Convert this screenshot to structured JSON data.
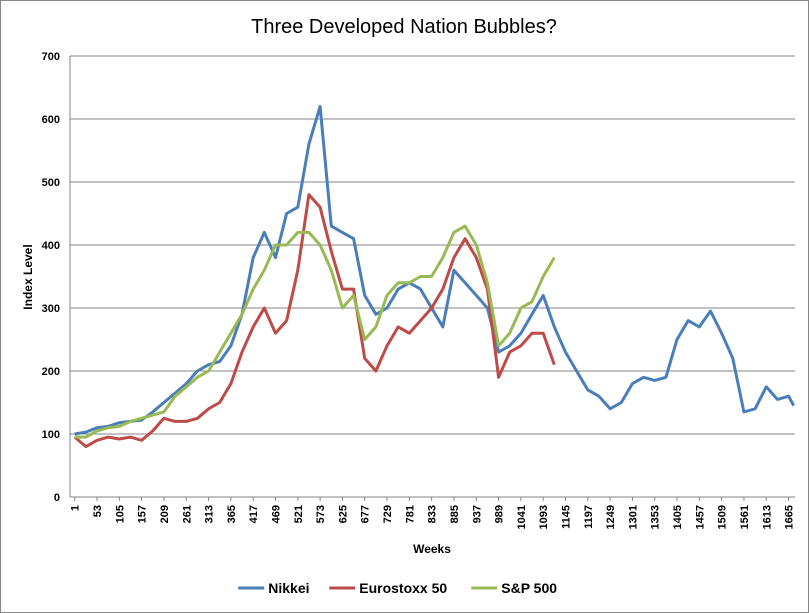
{
  "chart_data": {
    "type": "line",
    "title": "Three Developed Nation Bubbles?",
    "xlabel": "Weeks",
    "ylabel": "Index Level",
    "x": [
      1,
      27,
      53,
      79,
      105,
      131,
      157,
      183,
      209,
      235,
      261,
      287,
      313,
      339,
      365,
      391,
      417,
      443,
      469,
      495,
      521,
      547,
      573,
      599,
      625,
      651,
      677,
      703,
      729,
      755,
      781,
      807,
      833,
      859,
      885,
      911,
      937,
      963,
      989,
      1015,
      1041,
      1067,
      1093,
      1119,
      1145,
      1171,
      1197,
      1223,
      1249,
      1275,
      1301,
      1327,
      1353,
      1379,
      1405,
      1431,
      1457,
      1483,
      1509,
      1535,
      1561,
      1587,
      1613,
      1639,
      1665,
      1677
    ],
    "series": [
      {
        "name": "Nikkei",
        "color": "#4a7ebb",
        "values": [
          100,
          103,
          110,
          112,
          118,
          120,
          122,
          135,
          150,
          165,
          180,
          200,
          210,
          215,
          240,
          290,
          380,
          420,
          380,
          450,
          460,
          560,
          620,
          430,
          420,
          410,
          320,
          290,
          300,
          330,
          340,
          330,
          300,
          270,
          360,
          340,
          320,
          300,
          230,
          240,
          260,
          290,
          320,
          270,
          230,
          200,
          170,
          160,
          140,
          150,
          180,
          190,
          185,
          190,
          250,
          280,
          270,
          295,
          260,
          220,
          135,
          140,
          175,
          155,
          160,
          145
        ]
      },
      {
        "name": "Eurostoxx 50",
        "color": "#be4b48",
        "values": [
          95,
          80,
          90,
          95,
          92,
          95,
          90,
          105,
          125,
          120,
          120,
          125,
          140,
          150,
          180,
          230,
          270,
          300,
          260,
          280,
          360,
          480,
          460,
          390,
          330,
          330,
          220,
          200,
          240,
          270,
          260,
          280,
          300,
          330,
          380,
          410,
          380,
          330,
          190,
          230,
          240,
          260,
          260,
          210,
          null,
          null,
          null,
          null,
          null,
          null,
          null,
          null,
          null,
          null,
          null,
          null,
          null,
          null,
          null,
          null,
          null,
          null,
          null,
          null,
          null,
          null
        ]
      },
      {
        "name": "S&P 500",
        "color": "#98b954",
        "values": [
          95,
          95,
          105,
          110,
          112,
          120,
          125,
          130,
          135,
          160,
          175,
          190,
          200,
          230,
          260,
          290,
          330,
          360,
          400,
          400,
          420,
          420,
          400,
          360,
          300,
          320,
          250,
          270,
          320,
          340,
          340,
          350,
          350,
          380,
          420,
          430,
          400,
          340,
          240,
          260,
          300,
          310,
          350,
          380,
          null,
          null,
          null,
          null,
          null,
          null,
          null,
          null,
          null,
          null,
          null,
          null,
          null,
          null,
          null,
          null,
          null,
          null,
          null,
          null,
          null,
          null
        ]
      }
    ],
    "xlim": [
      -10,
      1680
    ],
    "xticks": [
      1,
      53,
      105,
      157,
      209,
      261,
      313,
      365,
      417,
      469,
      521,
      573,
      625,
      677,
      729,
      781,
      833,
      885,
      937,
      989,
      1041,
      1093,
      1145,
      1197,
      1249,
      1301,
      1353,
      1405,
      1457,
      1509,
      1561,
      1613,
      1665
    ],
    "ylim": [
      0,
      700
    ],
    "yticks": [
      0,
      100,
      200,
      300,
      400,
      500,
      600,
      700
    ],
    "grid": true,
    "legend": "bottom"
  }
}
